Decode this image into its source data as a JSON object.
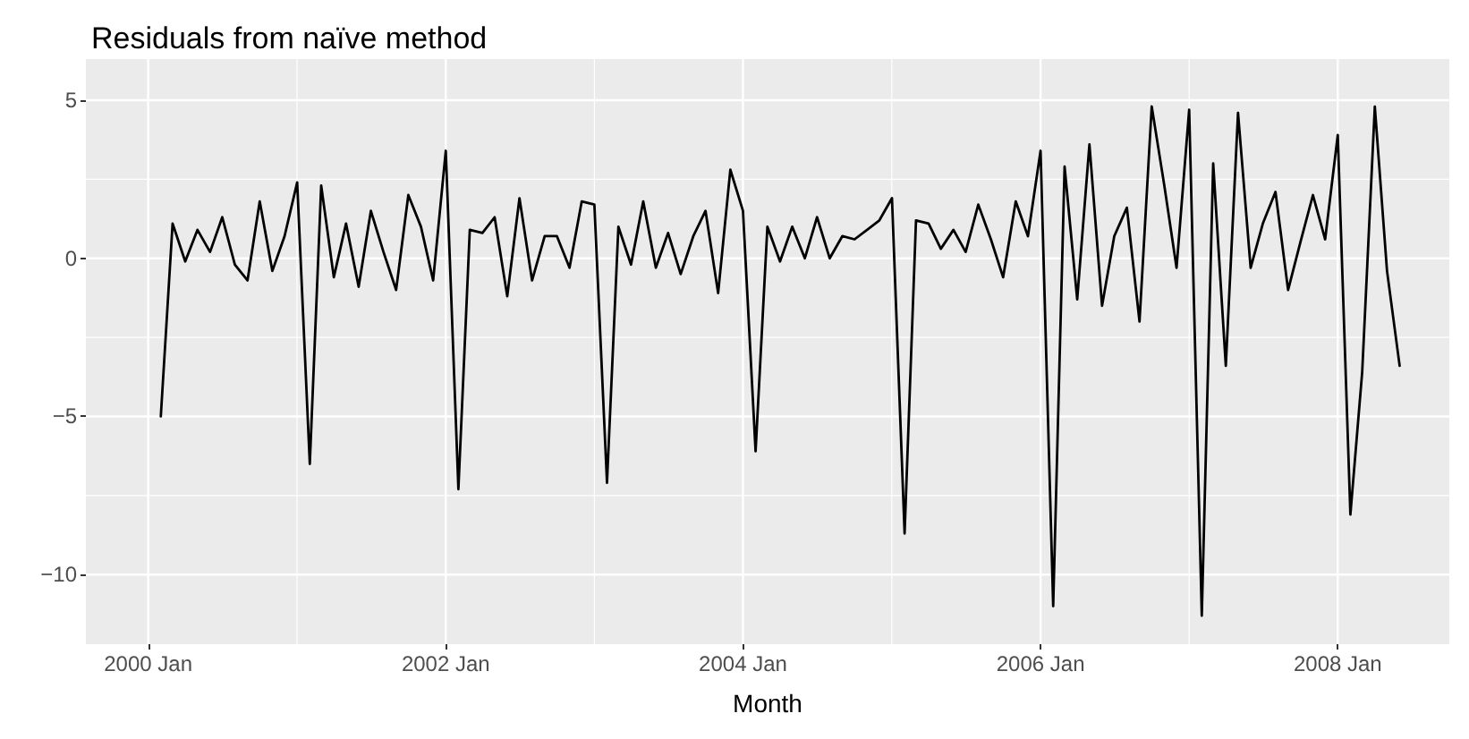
{
  "chart_data": {
    "type": "line",
    "title": "Residuals from naïve method",
    "xlabel": "Month",
    "x": [
      "2000-02",
      "2000-03",
      "2000-04",
      "2000-05",
      "2000-06",
      "2000-07",
      "2000-08",
      "2000-09",
      "2000-10",
      "2000-11",
      "2000-12",
      "2001-01",
      "2001-02",
      "2001-03",
      "2001-04",
      "2001-05",
      "2001-06",
      "2001-07",
      "2001-08",
      "2001-09",
      "2001-10",
      "2001-11",
      "2001-12",
      "2002-01",
      "2002-02",
      "2002-03",
      "2002-04",
      "2002-05",
      "2002-06",
      "2002-07",
      "2002-08",
      "2002-09",
      "2002-10",
      "2002-11",
      "2002-12",
      "2003-01",
      "2003-02",
      "2003-03",
      "2003-04",
      "2003-05",
      "2003-06",
      "2003-07",
      "2003-08",
      "2003-09",
      "2003-10",
      "2003-11",
      "2003-12",
      "2004-01",
      "2004-02",
      "2004-03",
      "2004-04",
      "2004-05",
      "2004-06",
      "2004-07",
      "2004-08",
      "2004-09",
      "2004-10",
      "2004-11",
      "2004-12",
      "2005-01",
      "2005-02",
      "2005-03",
      "2005-04",
      "2005-05",
      "2005-06",
      "2005-07",
      "2005-08",
      "2005-09",
      "2005-10",
      "2005-11",
      "2005-12",
      "2006-01",
      "2006-02",
      "2006-03",
      "2006-04",
      "2006-05",
      "2006-06",
      "2006-07",
      "2006-08",
      "2006-09",
      "2006-10",
      "2006-11",
      "2006-12",
      "2007-01",
      "2007-02",
      "2007-03",
      "2007-04",
      "2007-05",
      "2007-06",
      "2007-07",
      "2007-08",
      "2007-09",
      "2007-10",
      "2007-11",
      "2007-12",
      "2008-01",
      "2008-02",
      "2008-03",
      "2008-04",
      "2008-05",
      "2008-06"
    ],
    "series": [
      {
        "color": "#000000",
        "values": [
          -5.0,
          1.1,
          -0.1,
          0.9,
          0.2,
          1.3,
          -0.2,
          -0.7,
          1.8,
          -0.4,
          0.7,
          2.4,
          -6.5,
          2.3,
          -0.6,
          1.1,
          -0.9,
          1.5,
          0.2,
          -1.0,
          2.0,
          1.0,
          -0.7,
          3.4,
          -7.3,
          0.9,
          0.8,
          1.3,
          -1.2,
          1.9,
          -0.7,
          0.7,
          0.7,
          -0.3,
          1.8,
          1.7,
          -7.1,
          1.0,
          -0.2,
          1.8,
          -0.3,
          0.8,
          -0.5,
          0.7,
          1.5,
          -1.1,
          2.8,
          1.5,
          -6.1,
          1.0,
          -0.1,
          1.0,
          0.0,
          1.3,
          0.0,
          0.7,
          0.6,
          0.9,
          1.2,
          1.9,
          -8.7,
          1.2,
          1.1,
          0.3,
          0.9,
          0.2,
          1.7,
          0.6,
          -0.6,
          1.8,
          0.7,
          3.4,
          -11.0,
          2.9,
          -1.3,
          3.6,
          -1.5,
          0.7,
          1.6,
          -2.0,
          4.8,
          2.3,
          -0.3,
          4.7,
          -11.3,
          3.0,
          -3.4,
          4.6,
          -0.3,
          1.1,
          2.1,
          -1.0,
          0.5,
          2.0,
          0.6,
          3.9,
          -8.1,
          -3.6,
          4.8,
          -0.4,
          -3.4
        ]
      }
    ],
    "xlim": [
      "1999-08",
      "2008-10"
    ],
    "xticks": [
      {
        "value": "2000-01",
        "label": "2000 Jan"
      },
      {
        "value": "2002-01",
        "label": "2002 Jan"
      },
      {
        "value": "2004-01",
        "label": "2004 Jan"
      },
      {
        "value": "2006-01",
        "label": "2006 Jan"
      },
      {
        "value": "2008-01",
        "label": "2008 Jan"
      }
    ],
    "ylim": [
      -12.2,
      6.3
    ],
    "yticks": [
      {
        "value": -10,
        "label": "−10"
      },
      {
        "value": -5,
        "label": "−5"
      },
      0,
      5
    ],
    "grid": true,
    "marker": "none",
    "line_style": "solid"
  }
}
